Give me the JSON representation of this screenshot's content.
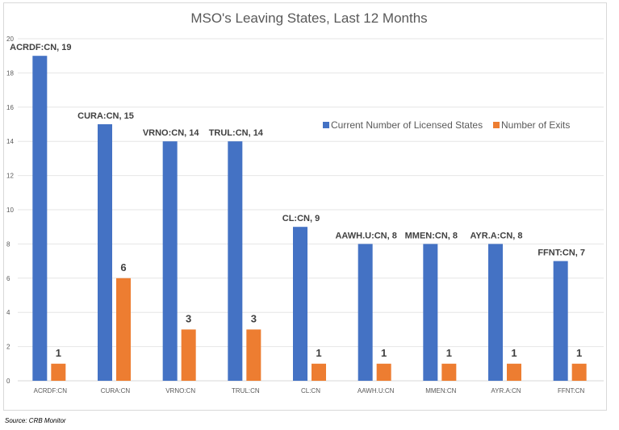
{
  "chart_data": {
    "type": "bar",
    "title": "MSO's Leaving States, Last 12 Months",
    "categories": [
      "ACRDF:CN",
      "CURA:CN",
      "VRNO:CN",
      "TRUL:CN",
      "CL:CN",
      "AAWH.U:CN",
      "MMEN:CN",
      "AYR.A:CN",
      "FFNT:CN"
    ],
    "series": [
      {
        "name": "Current Number of Licensed States",
        "color": "#4472C4",
        "values": [
          19,
          15,
          14,
          14,
          9,
          8,
          8,
          8,
          7
        ],
        "data_labels": [
          "ACRDF:CN, 19",
          "CURA:CN, 15",
          "VRNO:CN, 14",
          "TRUL:CN, 14",
          "CL:CN, 9",
          "AAWH.U:CN, 8",
          "MMEN:CN, 8",
          "AYR.A:CN, 8",
          "FFNT:CN, 7"
        ]
      },
      {
        "name": "Number of Exits",
        "color": "#ED7D31",
        "values": [
          1,
          6,
          3,
          3,
          1,
          1,
          1,
          1,
          1
        ],
        "data_labels": [
          "1",
          "6",
          "3",
          "3",
          "1",
          "1",
          "1",
          "1",
          "1"
        ]
      }
    ],
    "ylim": [
      0,
      20
    ],
    "yticks": [
      "0",
      "2",
      "4",
      "6",
      "8",
      "10",
      "12",
      "14",
      "16",
      "18",
      "20"
    ],
    "grid": true,
    "legend": "upper-right",
    "xlabel": "",
    "ylabel": ""
  },
  "source": "Source: CRB Monitor"
}
